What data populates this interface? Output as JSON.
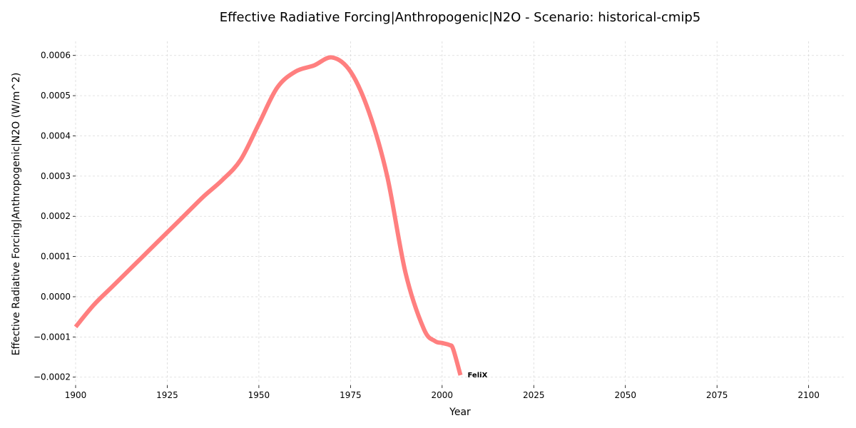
{
  "chart_data": {
    "type": "line",
    "title": "Effective Radiative Forcing|Anthropogenic|N2O - Scenario: historical-cmip5",
    "xlabel": "Year",
    "ylabel": "Effective Radiative Forcing|Anthropogenic|N2O (W/m^2)",
    "xlim": [
      1900,
      2110
    ],
    "ylim": [
      -0.00022,
      0.000635
    ],
    "x_ticks": [
      1900,
      1925,
      1950,
      1975,
      2000,
      2025,
      2050,
      2075,
      2100
    ],
    "x_tick_labels": [
      "1900",
      "1925",
      "1950",
      "1975",
      "2000",
      "2025",
      "2050",
      "2075",
      "2100"
    ],
    "y_ticks": [
      -0.0002,
      -0.0001,
      0.0,
      0.0001,
      0.0002,
      0.0003,
      0.0004,
      0.0005,
      0.0006
    ],
    "y_tick_labels": [
      "−0.0002",
      "−0.0001",
      "0.0000",
      "0.0001",
      "0.0002",
      "0.0003",
      "0.0004",
      "0.0005",
      "0.0006"
    ],
    "grid": true,
    "series": [
      {
        "name": "FeliX",
        "color": "#ff7f7f",
        "x": [
          1900,
          1905,
          1910,
          1915,
          1920,
          1925,
          1930,
          1935,
          1940,
          1945,
          1950,
          1955,
          1960,
          1965,
          1970,
          1975,
          1980,
          1985,
          1990,
          1995,
          1998,
          2000,
          2002,
          2003,
          2005
        ],
        "y": [
          -7.5e-05,
          -2e-05,
          2.5e-05,
          7e-05,
          0.000115,
          0.00016,
          0.000205,
          0.00025,
          0.00029,
          0.00034,
          0.00043,
          0.00052,
          0.00056,
          0.000575,
          0.000595,
          0.00056,
          0.00046,
          0.0003,
          6e-05,
          -8e-05,
          -0.00011,
          -0.000115,
          -0.00012,
          -0.00013,
          -0.000195
        ]
      }
    ]
  }
}
